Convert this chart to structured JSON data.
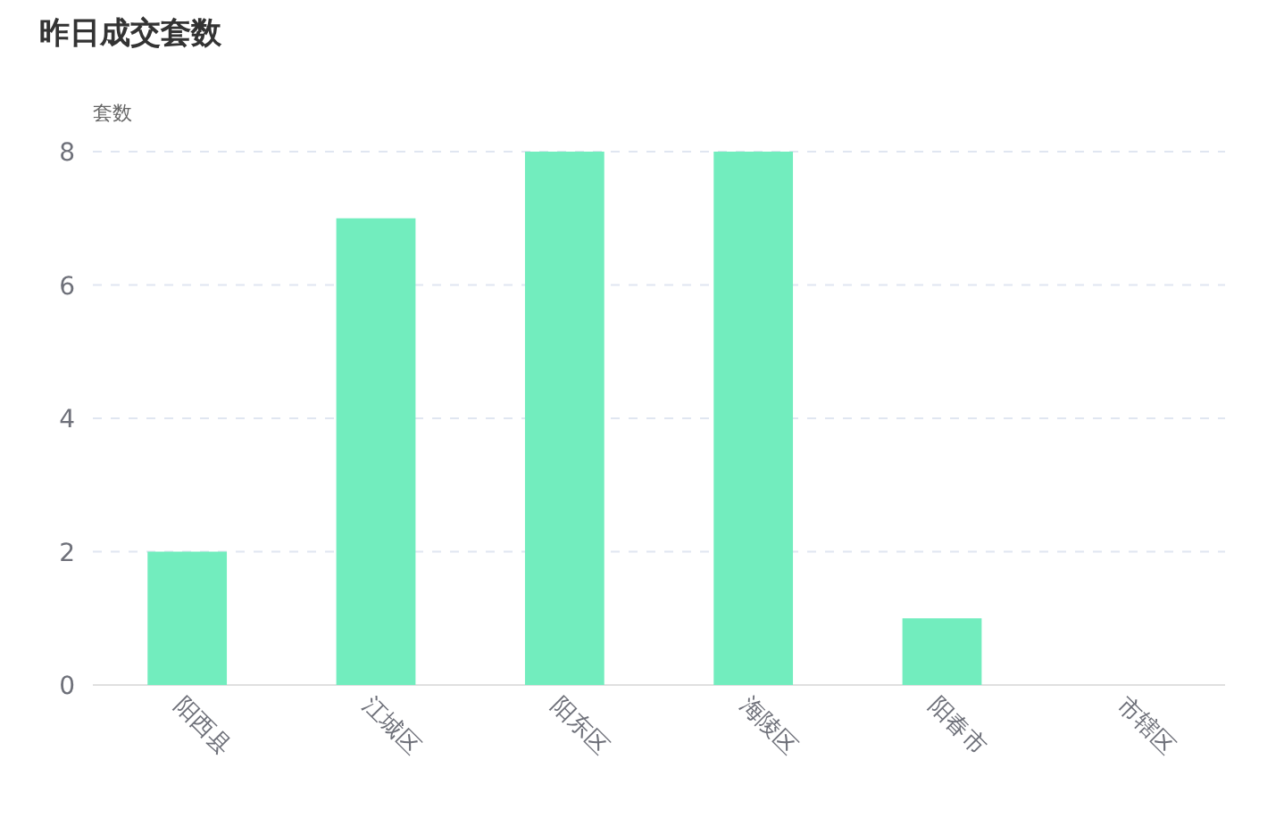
{
  "chart_data": {
    "type": "bar",
    "title": "昨日成交套数",
    "ylabel": "套数",
    "categories": [
      "阳西县",
      "江城区",
      "阳东区",
      "海陵区",
      "阳春市",
      "市辖区"
    ],
    "values": [
      2,
      7,
      8,
      8,
      1,
      0
    ],
    "color": "#72edbe",
    "ylim": [
      0,
      8
    ],
    "yticks": [
      0,
      2,
      4,
      6,
      8
    ],
    "grid": "y"
  }
}
